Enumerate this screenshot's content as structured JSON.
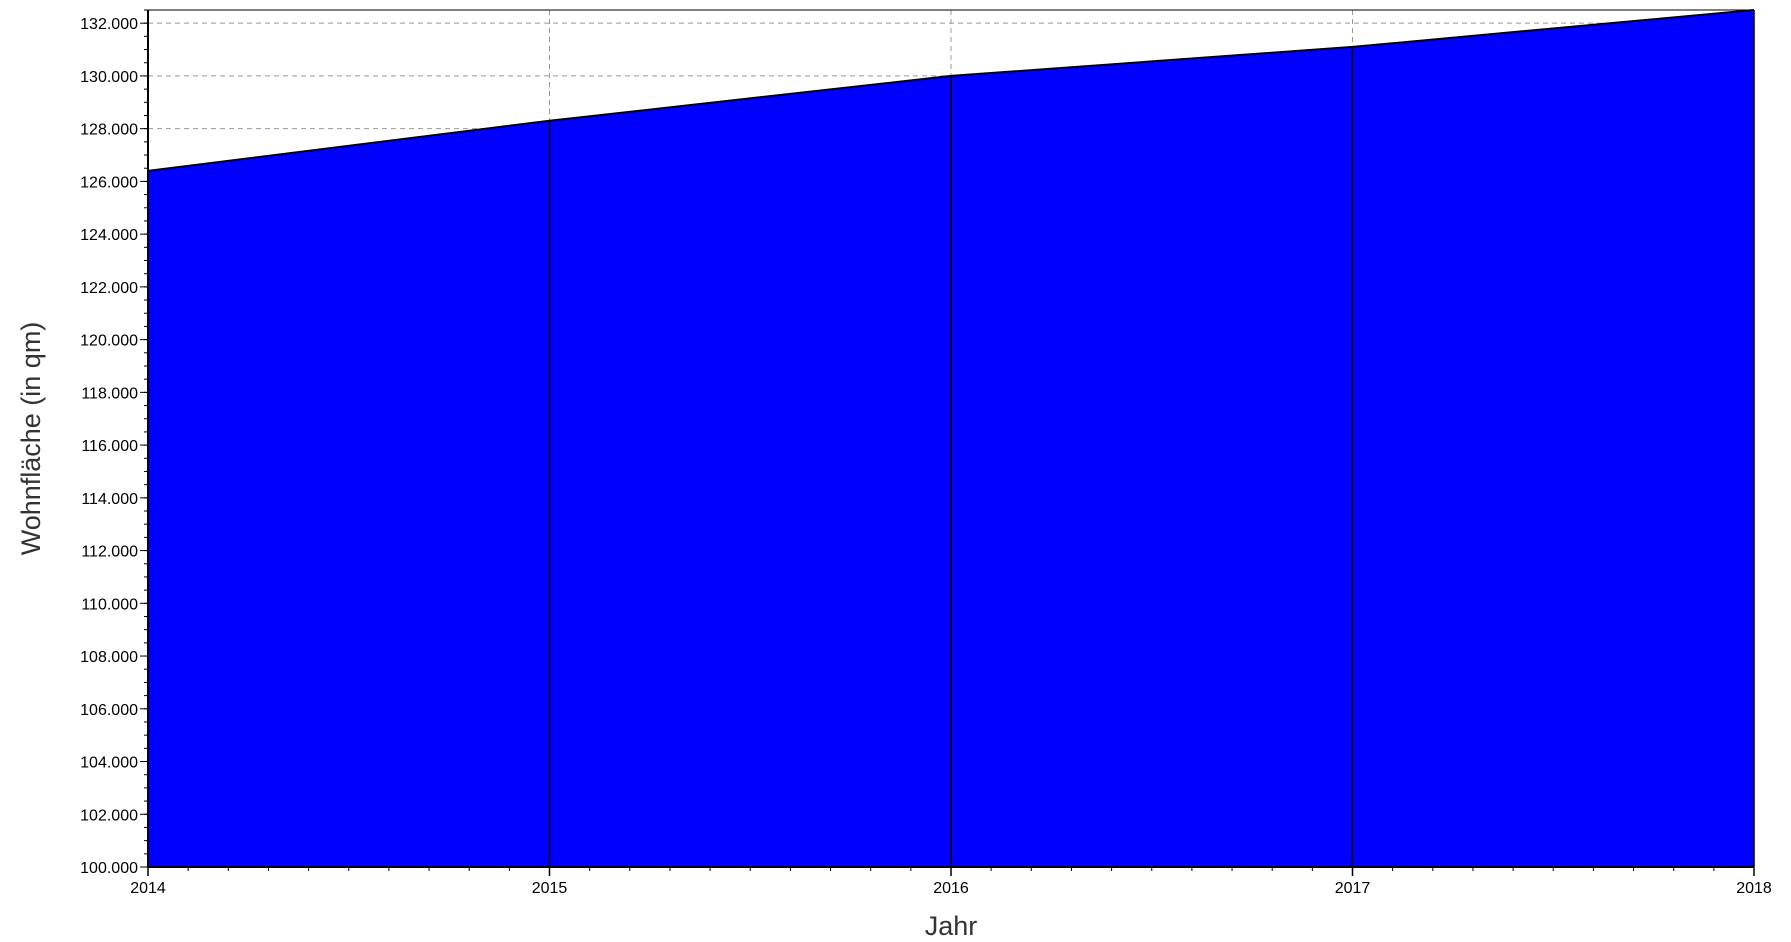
{
  "chart_data": {
    "type": "area",
    "title": "",
    "xlabel": "Jahr",
    "ylabel": "Wohnfläche (in qm)",
    "x": [
      2014,
      2015,
      2016,
      2017,
      2018
    ],
    "series": [
      {
        "values": [
          126400,
          128300,
          130000,
          131100,
          132500
        ]
      }
    ],
    "xlim": [
      2014,
      2018
    ],
    "ylim": [
      100000,
      132500
    ],
    "x_ticks": [
      2014,
      2015,
      2016,
      2017,
      2018
    ],
    "x_tick_labels": [
      "2014",
      "2015",
      "2016",
      "2017",
      "2018"
    ],
    "y_ticks": [
      100000,
      102000,
      104000,
      106000,
      108000,
      110000,
      112000,
      114000,
      116000,
      118000,
      120000,
      122000,
      124000,
      126000,
      128000,
      130000,
      132000
    ],
    "y_tick_labels": [
      "100.000",
      "102.000",
      "104.000",
      "106.000",
      "108.000",
      "110.000",
      "112.000",
      "114.000",
      "116.000",
      "118.000",
      "120.000",
      "122.000",
      "124.000",
      "126.000",
      "128.000",
      "130.000",
      "132.000"
    ],
    "grid": true,
    "legend": "none",
    "colors": {
      "fill": "#0000ff",
      "outline": "#000000",
      "grid": "#999999",
      "background": "#ffffff"
    }
  }
}
